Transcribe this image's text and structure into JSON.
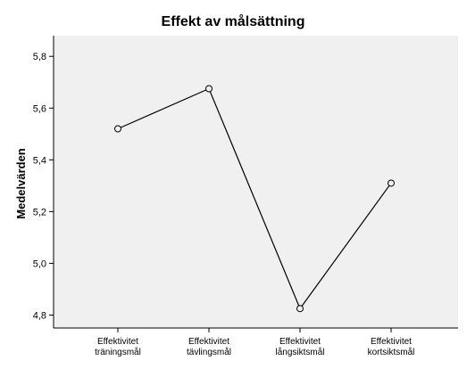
{
  "chart_data": {
    "type": "line",
    "title": "Effekt av målsättning",
    "xlabel": "",
    "ylabel": "Medelvärden",
    "categories": [
      [
        "Effektivitet",
        "träningsmål"
      ],
      [
        "Effektivitet",
        "tävlingsmål"
      ],
      [
        "Effektivitet",
        "långsiktsmål"
      ],
      [
        "Effektivitet",
        "kortsiktsmål"
      ]
    ],
    "series": [
      {
        "values": [
          5.52,
          5.675,
          4.825,
          5.31
        ]
      }
    ],
    "ylim": [
      4.75,
      5.88
    ],
    "yticks": [
      4.8,
      5.0,
      5.2,
      5.4,
      5.6,
      5.8
    ],
    "ytick_labels": [
      "4,8",
      "5,0",
      "5,2",
      "5,4",
      "5,6",
      "5,8"
    ],
    "grid": false,
    "legend": "none",
    "colors": {
      "plot_background": "#f0f0f0",
      "line": "#000000",
      "axis": "#000000",
      "marker_fill": "#f0f0f0"
    }
  }
}
